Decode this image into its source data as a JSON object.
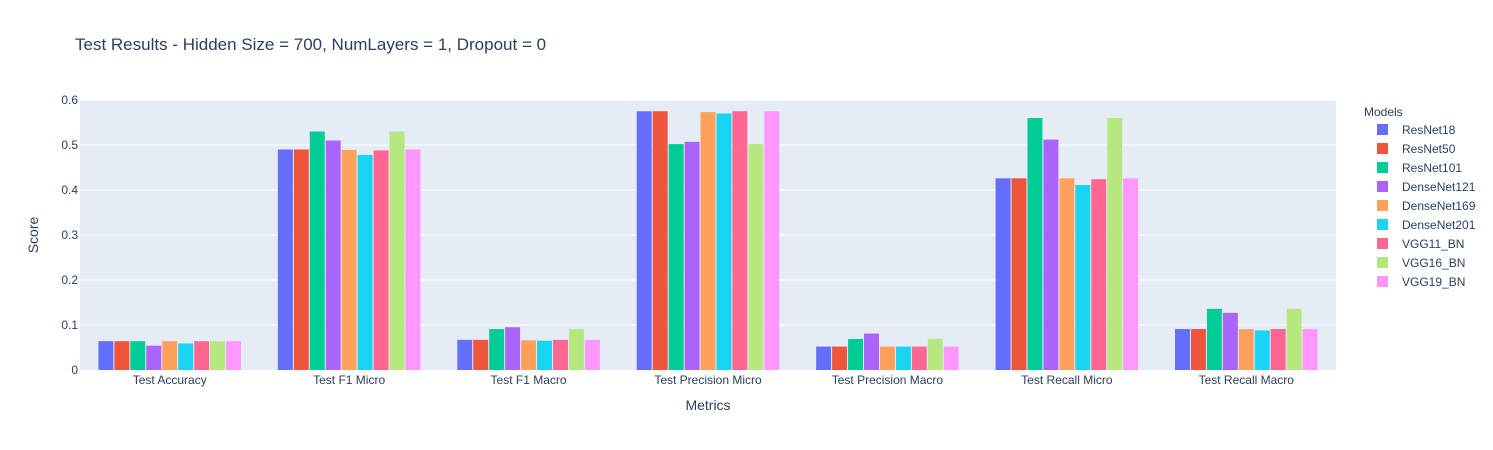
{
  "chart_data": {
    "type": "bar",
    "title": "Test Results - Hidden Size = 700, NumLayers = 1, Dropout = 0",
    "xlabel": "Metrics",
    "ylabel": "Score",
    "ylim": [
      0,
      0.6
    ],
    "yticks": [
      0,
      0.1,
      0.2,
      0.3,
      0.4,
      0.5,
      0.6
    ],
    "ytick_labels": [
      "0",
      "0.1",
      "0.2",
      "0.3",
      "0.4",
      "0.5",
      "0.6"
    ],
    "grid": true,
    "legend_title": "Models",
    "legend_position": "right",
    "categories": [
      "Test Accuracy",
      "Test F1 Micro",
      "Test F1 Macro",
      "Test Precision Micro",
      "Test Precision Macro",
      "Test Recall Micro",
      "Test Recall Macro"
    ],
    "series": [
      {
        "name": "ResNet18",
        "color": "#636efa",
        "values": [
          0.064,
          0.49,
          0.067,
          0.575,
          0.052,
          0.426,
          0.091
        ]
      },
      {
        "name": "ResNet50",
        "color": "#ef553b",
        "values": [
          0.064,
          0.49,
          0.067,
          0.575,
          0.052,
          0.426,
          0.091
        ]
      },
      {
        "name": "ResNet101",
        "color": "#00cc96",
        "values": [
          0.064,
          0.53,
          0.091,
          0.502,
          0.069,
          0.56,
          0.136
        ]
      },
      {
        "name": "DenseNet121",
        "color": "#ab63fa",
        "values": [
          0.054,
          0.51,
          0.095,
          0.507,
          0.081,
          0.512,
          0.127
        ]
      },
      {
        "name": "DenseNet169",
        "color": "#ffa15a",
        "values": [
          0.064,
          0.489,
          0.066,
          0.573,
          0.052,
          0.426,
          0.091
        ]
      },
      {
        "name": "DenseNet201",
        "color": "#19d3f3",
        "values": [
          0.059,
          0.478,
          0.065,
          0.57,
          0.052,
          0.411,
          0.088
        ]
      },
      {
        "name": "VGG11_BN",
        "color": "#ff6692",
        "values": [
          0.064,
          0.488,
          0.067,
          0.575,
          0.052,
          0.424,
          0.091
        ]
      },
      {
        "name": "VGG16_BN",
        "color": "#b6e880",
        "values": [
          0.064,
          0.53,
          0.091,
          0.502,
          0.069,
          0.56,
          0.136
        ]
      },
      {
        "name": "VGG19_BN",
        "color": "#ff97ff",
        "values": [
          0.064,
          0.49,
          0.067,
          0.575,
          0.052,
          0.426,
          0.091
        ]
      }
    ]
  }
}
